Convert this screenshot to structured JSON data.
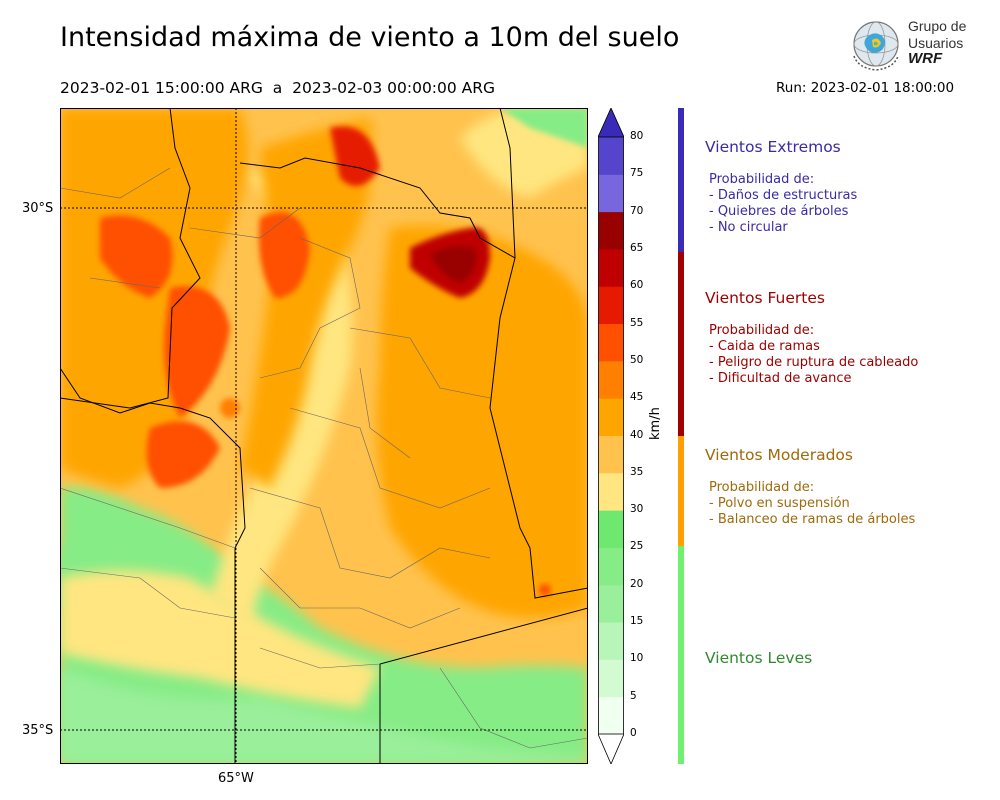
{
  "title": "Intensidad máxima de viento a 10m del suelo",
  "subtitle": "2023-02-01 15:00:00 ARG  a  2023-02-03 00:00:00 ARG",
  "run_label": "Run: 2023-02-01 18:00:00",
  "logo": {
    "line1": "Grupo de",
    "line2": "Usuarios",
    "line3": "WRF"
  },
  "axes": {
    "lat_labels": [
      "30°S",
      "35°S"
    ],
    "lon_labels": [
      "65°W"
    ]
  },
  "colorbar": {
    "unit": "km/h",
    "ticks": [
      "0",
      "5",
      "10",
      "15",
      "20",
      "25",
      "30",
      "35",
      "40",
      "45",
      "50",
      "55",
      "60",
      "65",
      "70",
      "75",
      "80"
    ],
    "colors": [
      "#f0fff0",
      "#d2fbd2",
      "#b8f5b8",
      "#9aef9a",
      "#86ec86",
      "#6fe86f",
      "#ffe680",
      "#ffc24d",
      "#ffa500",
      "#ff7f00",
      "#ff5000",
      "#e61a00",
      "#c00000",
      "#990000",
      "#7766dd",
      "#5544cc",
      "#4030b8"
    ]
  },
  "categories": [
    {
      "title": "Vientos Extremos",
      "desc_header": "Probabilidad de:",
      "items": [
        "- Daños de estructuras",
        "- Quiebres de árboles",
        "- No circular"
      ],
      "color": "#3a2aa8"
    },
    {
      "title": "Vientos Fuertes",
      "desc_header": "Probabilidad de:",
      "items": [
        "- Caida de ramas",
        "- Peligro de ruptura de cableado",
        "- Dificultad de avance"
      ],
      "color": "#9b0000"
    },
    {
      "title": "Vientos Moderados",
      "desc_header": "Probabilidad de:",
      "items": [
        "- Polvo en suspensión",
        "- Balanceo de ramas de árboles"
      ],
      "color": "#a0690a"
    },
    {
      "title": "Vientos Leves",
      "desc_header": "",
      "items": [],
      "color": "#2f8a2f"
    }
  ],
  "category_bar_colors": [
    "#3a2ab8",
    "#a00000",
    "#ffa000",
    "#6ff06f"
  ]
}
